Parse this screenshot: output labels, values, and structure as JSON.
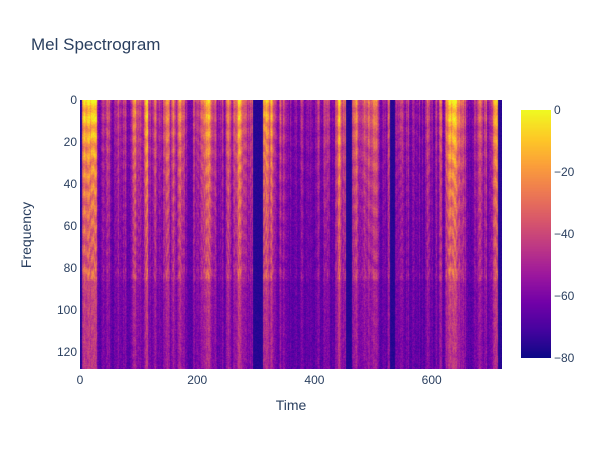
{
  "chart_data": {
    "type": "heatmap",
    "title": "Mel Spectrogram",
    "xlabel": "Time",
    "ylabel": "Frequency",
    "xlim": [
      0,
      720
    ],
    "ylim": [
      128,
      0
    ],
    "x_ticks": [
      0,
      200,
      400,
      600
    ],
    "y_ticks": [
      0,
      20,
      40,
      60,
      80,
      100,
      120
    ],
    "n_mel_bins": 128,
    "n_frames": 720,
    "colorscale": "plasma",
    "colors": [
      "#0d0887",
      "#46039f",
      "#7201a8",
      "#9c179e",
      "#bd3786",
      "#d8576b",
      "#ed7953",
      "#fb9f3a",
      "#fdca26",
      "#f0f921"
    ],
    "zlim": [
      -80,
      0
    ],
    "colorbar_ticks": [
      0,
      -20,
      -40,
      -60,
      -80
    ],
    "silent_segments": [
      [
        295,
        310
      ],
      [
        453,
        462
      ],
      [
        528,
        536
      ]
    ],
    "gridlines": false,
    "legend": "colorbar-right"
  }
}
